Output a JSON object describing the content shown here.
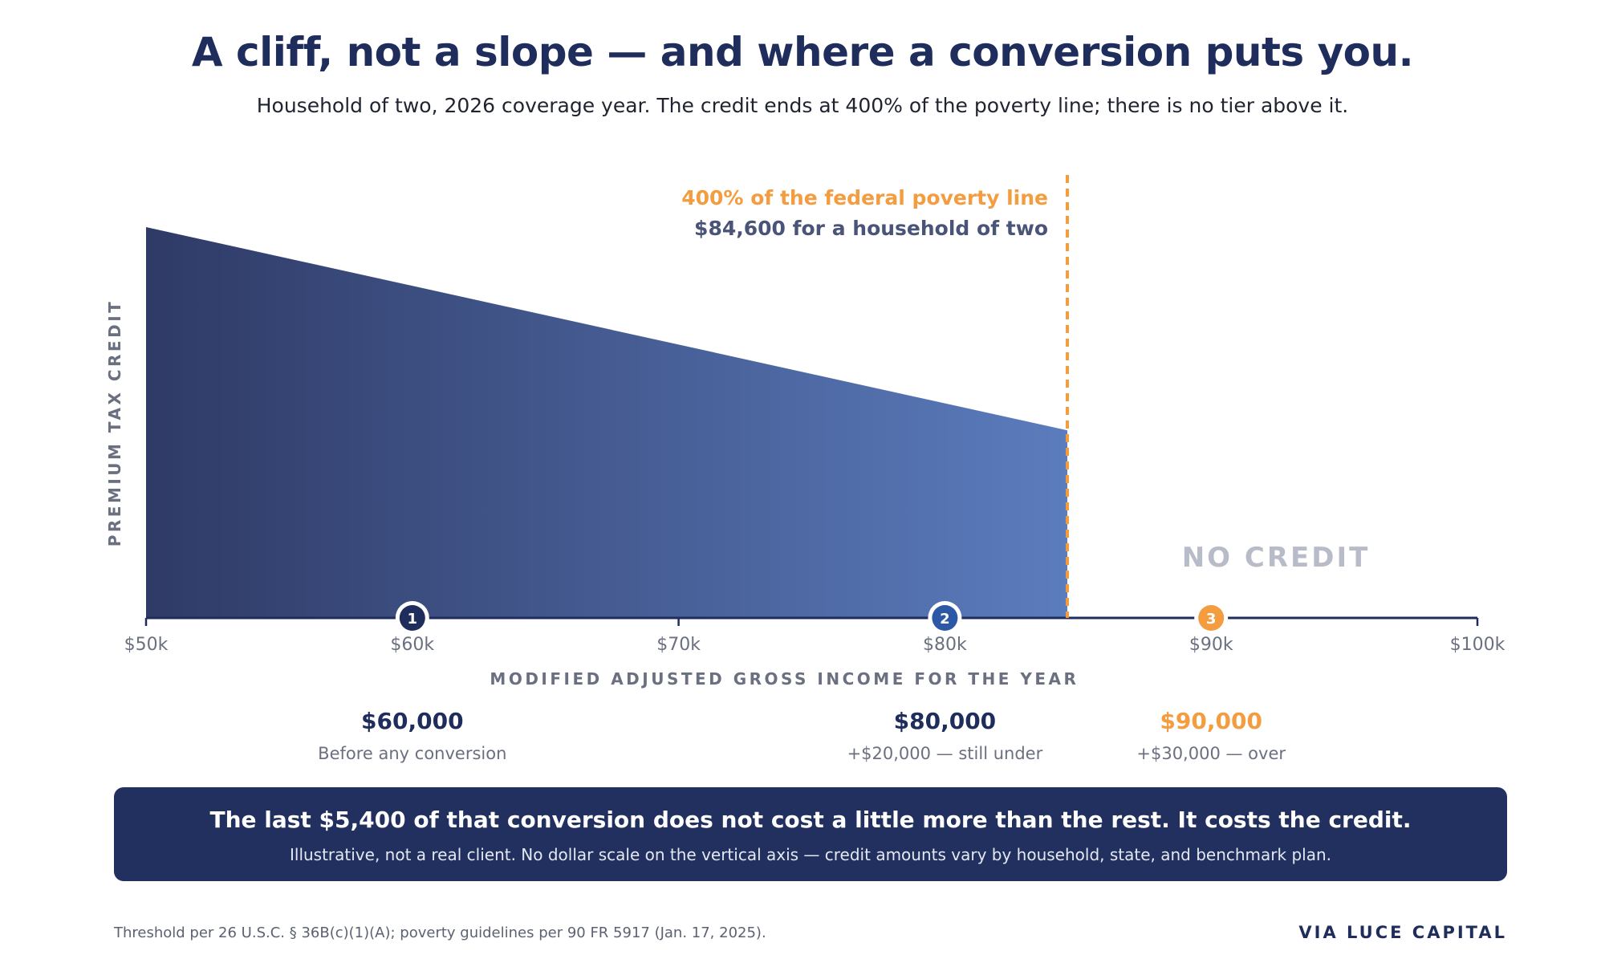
{
  "header": {
    "title": "A cliff, not a slope — and where a conversion puts you.",
    "subtitle": "Household of two, 2026 coverage year. The credit ends at 400% of the poverty line; there is no tier above it."
  },
  "chart_data": {
    "type": "area",
    "ylabel": "PREMIUM TAX CREDIT",
    "xlabel": "MODIFIED ADJUSTED GROSS INCOME FOR THE YEAR",
    "xlim": [
      50000,
      100000
    ],
    "x_ticks": [
      50000,
      60000,
      70000,
      80000,
      90000,
      100000
    ],
    "x_tick_labels": [
      "$50k",
      "$60k",
      "$70k",
      "$80k",
      "$90k",
      "$100k"
    ],
    "y_scale_note": "no dollar scale",
    "credit_curve": {
      "x": [
        50000,
        84600
      ],
      "y_relative": [
        1.0,
        0.48
      ],
      "gradient": [
        "#2f3a66",
        "#5b7cbd"
      ]
    },
    "threshold": {
      "x": 84600,
      "label_line1": "400% of the federal poverty line",
      "label_line2": "$84,600 for a household of two",
      "color": "#f39c40"
    },
    "no_credit_label": "NO CREDIT",
    "markers": [
      {
        "num": "1",
        "x": 60000,
        "value": "$60,000",
        "caption": "Before any conversion",
        "color": "#1f2d5c",
        "value_color": "#1f2d5c"
      },
      {
        "num": "2",
        "x": 80000,
        "value": "$80,000",
        "caption": "+$20,000 — still under",
        "color": "#2d58a5",
        "value_color": "#1f2d5c"
      },
      {
        "num": "3",
        "x": 90000,
        "value": "$90,000",
        "caption": "+$30,000 — over",
        "color": "#f39c40",
        "value_color": "#f39c40"
      }
    ],
    "grid": false,
    "legend": "none"
  },
  "banner": {
    "headline": "The last $5,400 of that conversion does not cost a little more than the rest. It costs the credit.",
    "note": "Illustrative, not a real client. No dollar scale on the vertical axis — credit amounts vary by household, state, and benchmark plan."
  },
  "footer": {
    "source": "Threshold per 26 U.S.C. § 36B(c)(1)(A); poverty guidelines per 90 FR 5917 (Jan. 17, 2025).",
    "brand": "VIA LUCE CAPITAL"
  },
  "colors": {
    "navy": "#1f2d5c",
    "orange": "#f39c40",
    "axis_label": "#6b7080",
    "no_credit": "#b8bcc8"
  }
}
